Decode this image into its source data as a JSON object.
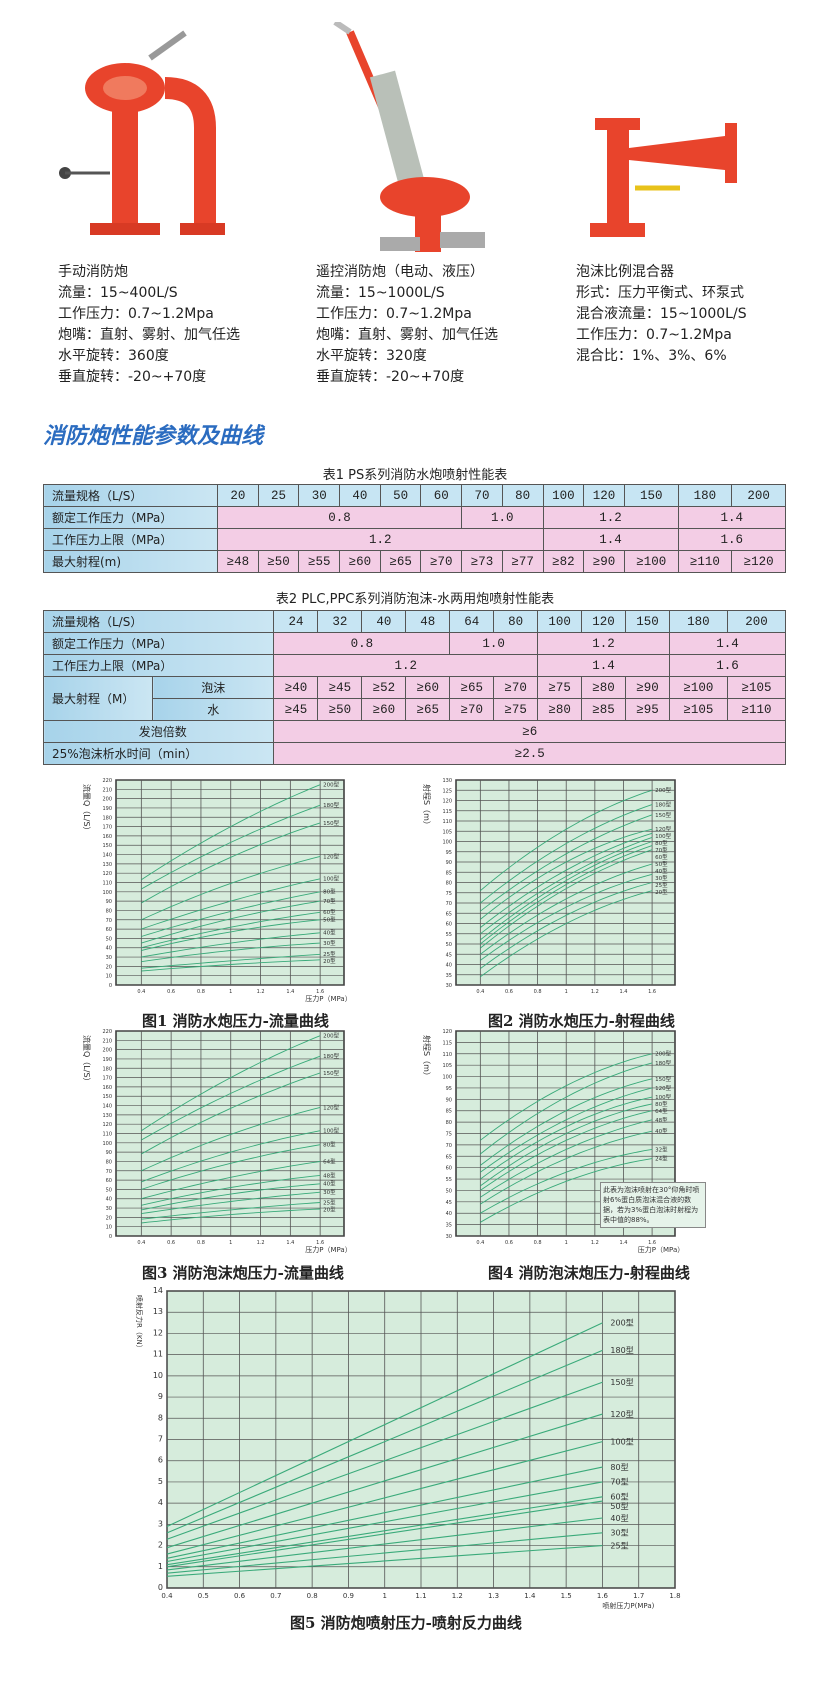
{
  "products": [
    {
      "name": "手动消防炮",
      "specs": [
        "流量：15~400L/S",
        "工作压力：0.7~1.2Mpa",
        "炮嘴：直射、雾射、加气任选",
        "水平旋转：360度",
        "垂直旋转：-20~+70度"
      ]
    },
    {
      "name": "遥控消防炮（电动、液压）",
      "specs": [
        "流量：15~1000L/S",
        "工作压力：0.7~1.2Mpa",
        "炮嘴：直射、雾射、加气任选",
        "水平旋转：320度",
        "垂直旋转：-20~+70度"
      ]
    },
    {
      "name": "泡沫比例混合器",
      "specs": [
        "形式：压力平衡式、环泵式",
        "混合液流量：15~1000L/S",
        "工作压力：0.7~1.2Mpa",
        "混合比：1%、3%、6%"
      ]
    }
  ],
  "section_title": "消防炮性能参数及曲线",
  "table1": {
    "caption": "表1  PS系列消防水炮喷射性能表",
    "rows": {
      "flow": {
        "label": "流量规格（L/S）",
        "values": [
          "20",
          "25",
          "30",
          "40",
          "50",
          "60",
          "70",
          "80",
          "100",
          "120",
          "150",
          "180",
          "200"
        ]
      },
      "rated": {
        "label": "额定工作压力（MPa）",
        "values": [
          "0.8",
          "1.0",
          "1.2",
          "1.4"
        ]
      },
      "upper": {
        "label": "工作压力上限（MPa）",
        "values": [
          "1.2",
          "1.4",
          "1.6"
        ]
      },
      "range": {
        "label": "最大射程(m)",
        "values": [
          "≥48",
          "≥50",
          "≥55",
          "≥60",
          "≥65",
          "≥70",
          "≥73",
          "≥77",
          "≥82",
          "≥90",
          "≥100",
          "≥110",
          "≥120"
        ]
      }
    }
  },
  "table2": {
    "caption": "表2  PLC,PPC系列消防泡沫-水两用炮喷射性能表",
    "rows": {
      "flow": {
        "label": "流量规格（L/S）",
        "values": [
          "24",
          "32",
          "40",
          "48",
          "64",
          "80",
          "100",
          "120",
          "150",
          "180",
          "200"
        ]
      },
      "rated": {
        "label": "额定工作压力（MPa）",
        "values": [
          "0.8",
          "1.0",
          "1.2",
          "1.4"
        ]
      },
      "upper": {
        "label": "工作压力上限（MPa）",
        "values": [
          "1.2",
          "1.4",
          "1.6"
        ]
      },
      "range": {
        "label": "最大射程（M）",
        "foam_label": "泡沫",
        "water_label": "水",
        "foam": [
          "≥40",
          "≥45",
          "≥52",
          "≥60",
          "≥65",
          "≥70",
          "≥75",
          "≥80",
          "≥90",
          "≥100",
          "≥105"
        ],
        "water": [
          "≥45",
          "≥50",
          "≥60",
          "≥65",
          "≥70",
          "≥75",
          "≥80",
          "≥85",
          "≥95",
          "≥105",
          "≥110"
        ]
      },
      "expansion": {
        "label": "发泡倍数",
        "value": "≥6"
      },
      "drain": {
        "label": "25%泡沫析水时间（min）",
        "value": "≥2.5"
      }
    }
  },
  "chart_data": [
    {
      "type": "line",
      "title": "图1 消防水炮压力-流量曲线",
      "xlabel": "压力P（MPa）",
      "ylabel": "流量Q（L/S）",
      "xlim": [
        0.4,
        1.6
      ],
      "ylim": [
        0,
        220
      ],
      "yticks_step": 10,
      "xticks": [
        "0.4",
        "0.6",
        "0.8",
        "1",
        "1.2",
        "1.4",
        "1.6"
      ],
      "grid": true,
      "line_color": "#3aaa7a",
      "x": [
        0.4,
        1.0,
        1.6
      ],
      "series": [
        {
          "name": "200型",
          "values": [
            113,
            170,
            215
          ]
        },
        {
          "name": "180型",
          "values": [
            103,
            153,
            193
          ]
        },
        {
          "name": "150型",
          "values": [
            88,
            137,
            174
          ]
        },
        {
          "name": "120型",
          "values": [
            70,
            109,
            138
          ]
        },
        {
          "name": "100型",
          "values": [
            60,
            90,
            114
          ]
        },
        {
          "name": "80型",
          "values": [
            52,
            79,
            100
          ]
        },
        {
          "name": "70型",
          "values": [
            45,
            71,
            90
          ]
        },
        {
          "name": "60型",
          "values": [
            40,
            62,
            78
          ]
        },
        {
          "name": "50型",
          "values": [
            37,
            57,
            70
          ]
        },
        {
          "name": "40型",
          "values": [
            30,
            45,
            56
          ]
        },
        {
          "name": "30型",
          "values": [
            25,
            37,
            45
          ]
        },
        {
          "name": "25型",
          "values": [
            18,
            26,
            33
          ]
        },
        {
          "name": "20型",
          "values": [
            15,
            22,
            27
          ]
        }
      ]
    },
    {
      "type": "line",
      "title": "图2 消防水炮压力-射程曲线",
      "xlabel": "",
      "ylabel": "射程S（m）",
      "xlim": [
        0.4,
        1.6
      ],
      "ylim": [
        30,
        130
      ],
      "yticks_step": 5,
      "xticks": [
        "0.4",
        "0.6",
        "0.8",
        "1",
        "1.2",
        "1.4",
        "1.6"
      ],
      "grid": true,
      "line_color": "#3aaa7a",
      "x": [
        0.4,
        1.0,
        1.6
      ],
      "series": [
        {
          "name": "200型",
          "values": [
            76,
            106,
            125
          ]
        },
        {
          "name": "180型",
          "values": [
            70,
            99,
            118
          ]
        },
        {
          "name": "150型",
          "values": [
            66,
            94,
            113
          ]
        },
        {
          "name": "120型",
          "values": [
            62,
            90,
            106
          ]
        },
        {
          "name": "100型",
          "values": [
            58,
            86,
            104
          ]
        },
        {
          "name": "80型",
          "values": [
            55,
            83,
            102
          ]
        },
        {
          "name": "70型",
          "values": [
            52,
            81,
            100
          ]
        },
        {
          "name": "60型",
          "values": [
            50,
            79,
            98
          ]
        },
        {
          "name": "50型",
          "values": [
            48,
            77,
            96
          ]
        },
        {
          "name": "40型",
          "values": [
            45,
            72,
            89
          ]
        },
        {
          "name": "30型",
          "values": [
            42,
            68,
            84
          ]
        },
        {
          "name": "25型",
          "values": [
            38,
            64,
            80
          ]
        },
        {
          "name": "20型",
          "values": [
            34,
            60,
            76
          ]
        }
      ]
    },
    {
      "type": "line",
      "title": "图3 消防泡沫炮压力-流量曲线",
      "xlabel": "压力P（MPa）",
      "ylabel": "流量Q（L/S）",
      "xlim": [
        0.4,
        1.6
      ],
      "ylim": [
        0,
        220
      ],
      "yticks_step": 10,
      "xticks": [
        "0.4",
        "0.6",
        "0.8",
        "1",
        "1.2",
        "1.4",
        "1.6"
      ],
      "grid": true,
      "line_color": "#3aaa7a",
      "x": [
        0.4,
        1.0,
        1.6
      ],
      "series": [
        {
          "name": "200型",
          "values": [
            113,
            170,
            215
          ]
        },
        {
          "name": "180型",
          "values": [
            103,
            153,
            193
          ]
        },
        {
          "name": "150型",
          "values": [
            88,
            137,
            175
          ]
        },
        {
          "name": "120型",
          "values": [
            70,
            109,
            138
          ]
        },
        {
          "name": "100型",
          "values": [
            58,
            90,
            113
          ]
        },
        {
          "name": "80型",
          "values": [
            50,
            78,
            98
          ]
        },
        {
          "name": "64型",
          "values": [
            40,
            63,
            80
          ]
        },
        {
          "name": "48型",
          "values": [
            33,
            52,
            65
          ]
        },
        {
          "name": "40型",
          "values": [
            28,
            45,
            56
          ]
        },
        {
          "name": "30型",
          "values": [
            24,
            37,
            47
          ]
        },
        {
          "name": "25型",
          "values": [
            18,
            28,
            36
          ]
        },
        {
          "name": "20型",
          "values": [
            14,
            23,
            29
          ]
        }
      ]
    },
    {
      "type": "line",
      "title": "图4 消防泡沫炮压力-射程曲线",
      "xlabel": "压力P（MPa）",
      "ylabel": "射程S（m）",
      "xlim": [
        0.4,
        1.6
      ],
      "ylim": [
        30,
        120
      ],
      "yticks_step": 5,
      "xticks": [
        "0.4",
        "0.6",
        "0.8",
        "1",
        "1.2",
        "1.4",
        "1.6"
      ],
      "grid": true,
      "line_color": "#3aaa7a",
      "x": [
        0.4,
        1.0,
        1.6
      ],
      "note": "此表为泡沫喷射在30°仰角时喷射6%蛋白质泡沫混合液的数据，若为3%蛋白泡沫时射程为表中值的88%。",
      "series": [
        {
          "name": "200型",
          "values": [
            72,
            96,
            110
          ]
        },
        {
          "name": "180型",
          "values": [
            66,
            91,
            106
          ]
        },
        {
          "name": "150型",
          "values": [
            61,
            85,
            99
          ]
        },
        {
          "name": "120型",
          "values": [
            58,
            81,
            95
          ]
        },
        {
          "name": "100型",
          "values": [
            55,
            78,
            91
          ]
        },
        {
          "name": "80型",
          "values": [
            52,
            75,
            88
          ]
        },
        {
          "name": "64型",
          "values": [
            50,
            72,
            85
          ]
        },
        {
          "name": "48型",
          "values": [
            47,
            68,
            81
          ]
        },
        {
          "name": "40型",
          "values": [
            44,
            64,
            76
          ]
        },
        {
          "name": "32型",
          "values": [
            40,
            58,
            68
          ]
        },
        {
          "name": "24型",
          "values": [
            36,
            54,
            64
          ]
        }
      ]
    },
    {
      "type": "line",
      "title": "图5 消防炮喷射压力-喷射反力曲线",
      "xlabel": "喷射压力P(MPa)",
      "ylabel": "喷射反力R（KN）",
      "xlim": [
        0.4,
        1.8
      ],
      "ylim": [
        0,
        14
      ],
      "yticks_step": 1,
      "xticks": [
        "0.4",
        "0.5",
        "0.6",
        "0.7",
        "0.8",
        "0.9",
        "1",
        "1.1",
        "1.2",
        "1.3",
        "1.4",
        "1.5",
        "1.6",
        "1.7",
        "1.8"
      ],
      "grid": true,
      "line_color": "#3aaa7a",
      "x": [
        0.4,
        1.6
      ],
      "series": [
        {
          "name": "200型",
          "values": [
            2.9,
            12.5
          ]
        },
        {
          "name": "180型",
          "values": [
            2.6,
            11.2
          ]
        },
        {
          "name": "150型",
          "values": [
            2.3,
            9.7
          ]
        },
        {
          "name": "120型",
          "values": [
            1.9,
            8.2
          ]
        },
        {
          "name": "100型",
          "values": [
            1.6,
            6.9
          ]
        },
        {
          "name": "80型",
          "values": [
            1.4,
            5.7
          ]
        },
        {
          "name": "70型",
          "values": [
            1.25,
            5.0
          ]
        },
        {
          "name": "60型",
          "values": [
            1.1,
            4.3
          ]
        },
        {
          "name": "50型",
          "values": [
            1.0,
            4.1
          ]
        },
        {
          "name": "40型",
          "values": [
            0.85,
            3.3
          ]
        },
        {
          "name": "30型",
          "values": [
            0.7,
            2.6
          ]
        },
        {
          "name": "25型",
          "values": [
            0.55,
            2.0
          ]
        }
      ]
    }
  ]
}
